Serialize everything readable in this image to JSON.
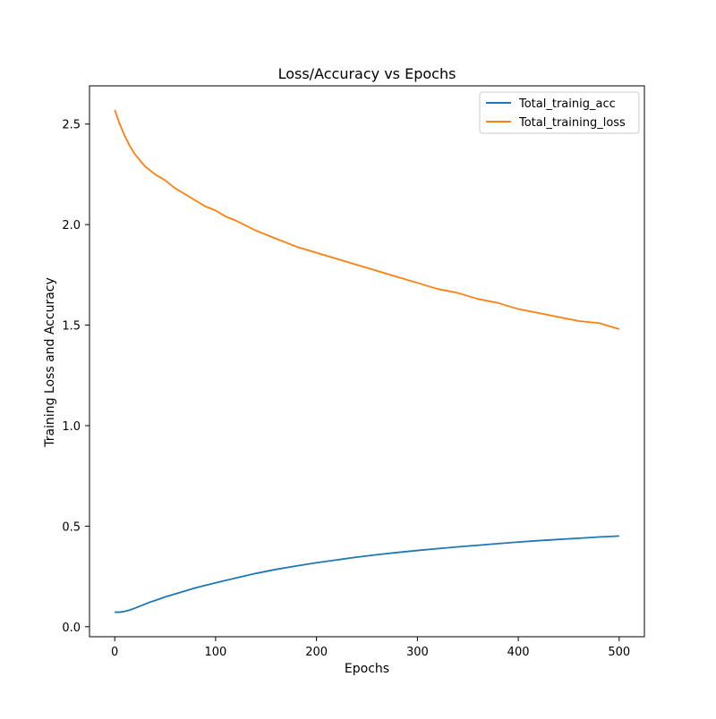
{
  "chart_data": {
    "type": "line",
    "title": "Loss/Accuracy vs Epochs",
    "xlabel": "Epochs",
    "ylabel": "Training Loss and Accuracy",
    "xlim": [
      -25,
      525
    ],
    "ylim": [
      -0.05,
      2.69
    ],
    "xticks": [
      0,
      100,
      200,
      300,
      400,
      500
    ],
    "yticks": [
      0.0,
      0.5,
      1.0,
      1.5,
      2.0,
      2.5
    ],
    "grid": false,
    "legend_position": "top-right",
    "series": [
      {
        "name": "Total_trainig_acc",
        "color": "#1f77b4",
        "x": [
          0,
          5,
          10,
          15,
          20,
          25,
          30,
          35,
          40,
          50,
          60,
          70,
          80,
          90,
          100,
          110,
          120,
          140,
          160,
          180,
          200,
          220,
          240,
          260,
          280,
          300,
          320,
          340,
          360,
          380,
          400,
          420,
          440,
          460,
          480,
          500
        ],
        "y": [
          0.072,
          0.072,
          0.076,
          0.083,
          0.092,
          0.102,
          0.112,
          0.122,
          0.13,
          0.148,
          0.163,
          0.178,
          0.193,
          0.206,
          0.218,
          0.23,
          0.242,
          0.265,
          0.285,
          0.302,
          0.318,
          0.332,
          0.346,
          0.358,
          0.369,
          0.379,
          0.388,
          0.397,
          0.405,
          0.413,
          0.421,
          0.428,
          0.434,
          0.44,
          0.446,
          0.451
        ]
      },
      {
        "name": "Total_training_loss",
        "color": "#ff7f0e",
        "x": [
          0,
          5,
          10,
          15,
          20,
          25,
          30,
          35,
          40,
          50,
          60,
          70,
          80,
          90,
          100,
          110,
          120,
          140,
          160,
          180,
          200,
          220,
          240,
          260,
          280,
          300,
          320,
          340,
          360,
          380,
          400,
          420,
          440,
          460,
          480,
          500
        ],
        "y": [
          2.57,
          2.5,
          2.44,
          2.39,
          2.35,
          2.32,
          2.29,
          2.27,
          2.25,
          2.22,
          2.18,
          2.15,
          2.12,
          2.09,
          2.07,
          2.04,
          2.02,
          1.97,
          1.93,
          1.89,
          1.86,
          1.83,
          1.8,
          1.77,
          1.74,
          1.71,
          1.68,
          1.66,
          1.63,
          1.61,
          1.58,
          1.56,
          1.54,
          1.52,
          1.51,
          1.48
        ]
      }
    ]
  }
}
